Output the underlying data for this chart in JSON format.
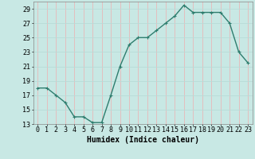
{
  "x": [
    0,
    1,
    2,
    3,
    4,
    5,
    6,
    7,
    8,
    9,
    10,
    11,
    12,
    13,
    14,
    15,
    16,
    17,
    18,
    19,
    20,
    21,
    22,
    23
  ],
  "y": [
    18,
    18,
    17,
    16,
    14,
    14,
    13.2,
    13.2,
    17,
    21,
    24,
    25,
    25,
    26,
    27,
    28,
    29.5,
    28.5,
    28.5,
    28.5,
    28.5,
    27,
    23,
    21.5
  ],
  "line_color": "#2e7d6e",
  "marker": "+",
  "bg_color": "#c8e8e4",
  "grid_color_x": "#e8b8b8",
  "grid_color_y": "#b8dcd8",
  "xlabel": "Humidex (Indice chaleur)",
  "ylim": [
    13,
    30
  ],
  "yticks": [
    13,
    15,
    17,
    19,
    21,
    23,
    25,
    27,
    29
  ],
  "xlabel_fontsize": 7,
  "tick_fontsize": 6,
  "linewidth": 1.0,
  "markersize": 3,
  "markeredgewidth": 0.8
}
